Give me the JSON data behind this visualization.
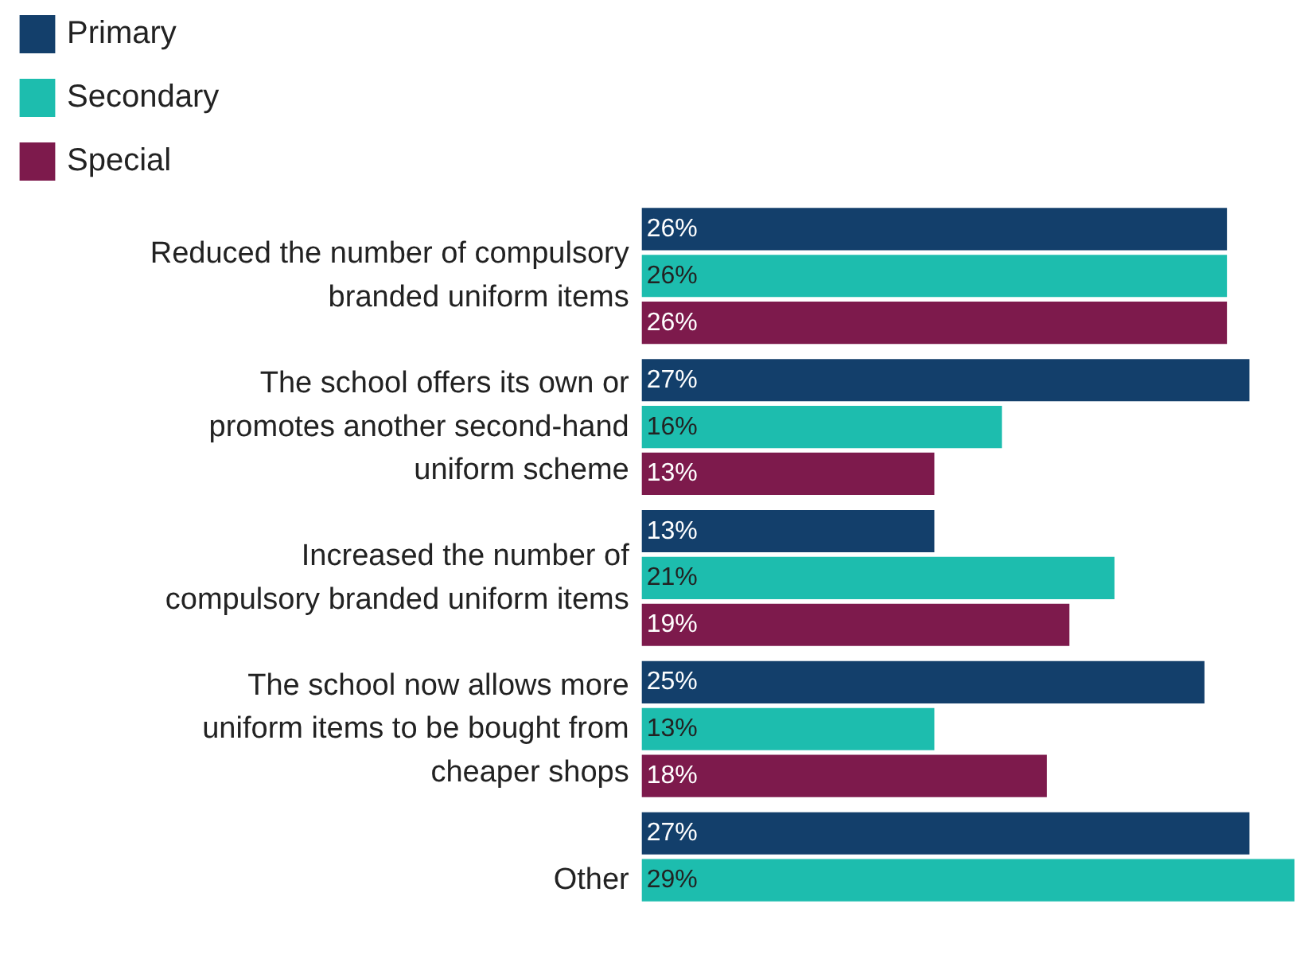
{
  "chart_data": {
    "type": "bar",
    "orientation": "horizontal",
    "legend": "top",
    "categories": [
      "Reduced the number of compulsory branded uniform items",
      "The school offers its own or promotes another second-hand uniform scheme",
      "Increased the number of compulsory branded uniform items",
      "The school now allows more uniform items to be bought from cheaper shops",
      "Other"
    ],
    "series": [
      {
        "name": "Primary",
        "color": "#133f6b",
        "values": [
          26,
          27,
          13,
          25,
          27
        ],
        "value_labels": [
          "26%",
          "27%",
          "13%",
          "25%",
          "27%"
        ]
      },
      {
        "name": "Secondary",
        "color": "#1dbdae",
        "values": [
          26,
          16,
          21,
          13,
          29
        ],
        "value_labels": [
          "26%",
          "16%",
          "21%",
          "13%",
          "29%"
        ]
      },
      {
        "name": "Special",
        "color": "#7d1a4c",
        "values": [
          26,
          13,
          19,
          18,
          null
        ],
        "value_labels": [
          "26%",
          "13%",
          "19%",
          "18%",
          null
        ]
      }
    ]
  }
}
